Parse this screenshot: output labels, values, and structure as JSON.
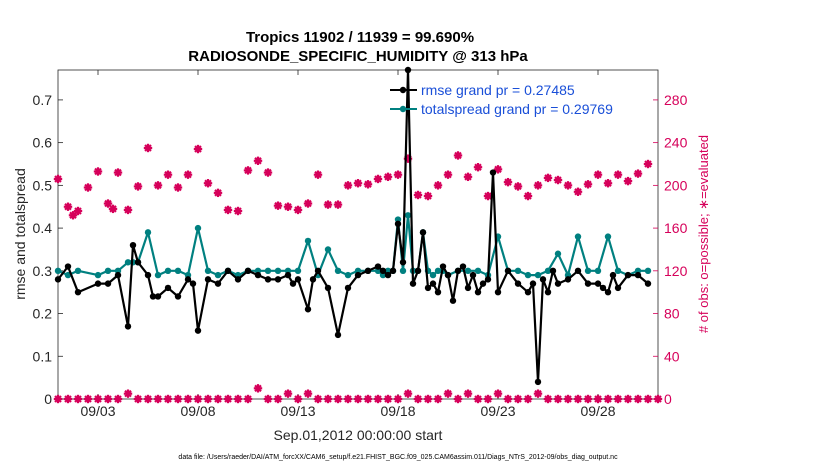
{
  "chart_data": {
    "type": "line",
    "title_line1": "Tropics 11902 / 11939 = 99.690%",
    "title_line2": "RADIOSONDE_SPECIFIC_HUMIDITY @ 313 hPa",
    "xlabel": "Sep.01,2012 00:00:00 start",
    "ylabel_left": "rmse and totalspread",
    "ylabel_right": "# of obs: o=possible; ∗=evaluated",
    "xlim": [
      1.0,
      31.0
    ],
    "ylim_left": [
      0,
      0.77
    ],
    "ylim_right": [
      0,
      308
    ],
    "x_ticks": [
      3,
      8,
      13,
      18,
      23,
      28
    ],
    "x_tick_labels": [
      "09/03",
      "09/08",
      "09/13",
      "09/18",
      "09/23",
      "09/28"
    ],
    "y_ticks_left": [
      0,
      0.1,
      0.2,
      0.3,
      0.4,
      0.5,
      0.6,
      0.7
    ],
    "y_tick_labels_left": [
      "0",
      "0.1",
      "0.2",
      "0.3",
      "0.4",
      "0.5",
      "0.6",
      "0.7"
    ],
    "y_ticks_right": [
      0,
      40,
      80,
      120,
      160,
      200,
      240,
      280
    ],
    "y_tick_labels_right": [
      "0",
      "40",
      "80",
      "120",
      "160",
      "200",
      "240",
      "280"
    ],
    "colors": {
      "rmse": "#000000",
      "spread": "#008080",
      "obs": "#d6005a",
      "legend_text": "#1a4fd8"
    },
    "legend": {
      "rmse": "rmse grand pr = 0.27485",
      "spread": "totalspread grand pr = 0.29769"
    },
    "series": [
      {
        "name": "rmse",
        "x": [
          1.0,
          1.5,
          2.0,
          3.0,
          3.5,
          4.0,
          4.5,
          4.75,
          5.0,
          5.5,
          5.75,
          6.0,
          6.5,
          7.0,
          7.5,
          7.75,
          8.0,
          8.5,
          9.0,
          9.5,
          10.0,
          10.5,
          11.0,
          11.5,
          12.0,
          12.5,
          12.75,
          13.0,
          13.5,
          13.75,
          14.0,
          14.5,
          15.0,
          15.5,
          16.0,
          16.5,
          17.0,
          17.25,
          17.5,
          17.75,
          18.0,
          18.25,
          18.5,
          18.75,
          19.0,
          19.25,
          19.5,
          19.75,
          20.0,
          20.25,
          20.5,
          20.75,
          21.0,
          21.25,
          21.5,
          21.75,
          22.0,
          22.25,
          22.5,
          22.75,
          23.0,
          23.5,
          24.0,
          24.5,
          24.75,
          25.0,
          25.25,
          25.5,
          25.75,
          26.0,
          26.5,
          27.0,
          27.5,
          28.0,
          28.25,
          28.5,
          28.75,
          29.0,
          29.5,
          30.0,
          30.5
        ],
        "values": [
          0.28,
          0.31,
          0.25,
          0.27,
          0.27,
          0.29,
          0.17,
          0.36,
          0.32,
          0.29,
          0.24,
          0.24,
          0.26,
          0.24,
          0.28,
          0.27,
          0.16,
          0.28,
          0.27,
          0.3,
          0.28,
          0.3,
          0.29,
          0.28,
          0.28,
          0.29,
          0.27,
          0.28,
          0.21,
          0.28,
          0.3,
          0.26,
          0.15,
          0.26,
          0.29,
          0.3,
          0.31,
          0.3,
          0.29,
          0.3,
          0.41,
          0.32,
          0.77,
          0.27,
          0.3,
          0.39,
          0.26,
          0.27,
          0.25,
          0.31,
          0.29,
          0.23,
          0.3,
          0.31,
          0.26,
          0.29,
          0.25,
          0.27,
          0.28,
          0.53,
          0.25,
          0.3,
          0.27,
          0.25,
          0.27,
          0.04,
          0.28,
          0.25,
          0.3,
          0.27,
          0.28,
          0.3,
          0.27,
          0.27,
          0.26,
          0.25,
          0.29,
          0.26,
          0.29,
          0.29,
          0.27
        ]
      },
      {
        "name": "totalspread",
        "x": [
          1.0,
          1.5,
          2.0,
          3.0,
          3.5,
          4.0,
          4.5,
          4.75,
          5.0,
          5.5,
          6.0,
          6.5,
          7.0,
          7.5,
          8.0,
          8.5,
          9.0,
          9.5,
          10.0,
          10.5,
          11.0,
          11.5,
          12.0,
          12.5,
          13.0,
          13.5,
          14.0,
          14.5,
          15.0,
          15.5,
          16.0,
          16.5,
          17.0,
          17.25,
          17.5,
          17.75,
          18.0,
          18.25,
          18.5,
          18.75,
          19.0,
          19.25,
          19.5,
          19.75,
          20.0,
          20.25,
          20.5,
          21.0,
          21.5,
          22.0,
          22.5,
          23.0,
          23.5,
          24.0,
          24.5,
          25.0,
          25.5,
          26.0,
          26.5,
          27.0,
          27.5,
          28.0,
          28.5,
          29.0,
          29.5,
          30.0,
          30.5
        ],
        "values": [
          0.3,
          0.29,
          0.3,
          0.29,
          0.3,
          0.3,
          0.32,
          0.32,
          0.32,
          0.39,
          0.29,
          0.3,
          0.3,
          0.29,
          0.4,
          0.3,
          0.29,
          0.3,
          0.29,
          0.3,
          0.3,
          0.3,
          0.3,
          0.3,
          0.3,
          0.37,
          0.29,
          0.35,
          0.3,
          0.29,
          0.3,
          0.3,
          0.3,
          0.29,
          0.3,
          0.3,
          0.42,
          0.3,
          0.43,
          0.3,
          0.3,
          0.39,
          0.3,
          0.29,
          0.3,
          0.3,
          0.29,
          0.3,
          0.3,
          0.3,
          0.29,
          0.38,
          0.3,
          0.3,
          0.29,
          0.29,
          0.3,
          0.34,
          0.29,
          0.38,
          0.3,
          0.3,
          0.38,
          0.3,
          0.29,
          0.3,
          0.3
        ]
      },
      {
        "name": "obs_evaluated",
        "x": [
          1.0,
          1.5,
          1.75,
          2.0,
          2.5,
          3.0,
          3.5,
          3.75,
          4.0,
          4.5,
          5.0,
          5.5,
          6.0,
          6.5,
          7.0,
          7.5,
          8.0,
          8.5,
          9.0,
          9.5,
          10.0,
          10.5,
          11.0,
          11.5,
          12.0,
          12.5,
          13.0,
          13.5,
          14.0,
          14.5,
          15.0,
          15.5,
          16.0,
          16.5,
          17.0,
          17.5,
          18.0,
          18.5,
          19.0,
          19.5,
          20.0,
          20.5,
          21.0,
          21.5,
          22.0,
          22.5,
          23.0,
          23.5,
          24.0,
          24.5,
          25.0,
          25.5,
          26.0,
          26.5,
          27.0,
          27.5,
          28.0,
          28.5,
          29.0,
          29.5,
          30.0,
          30.5
        ],
        "values": [
          206,
          180,
          172,
          176,
          198,
          213,
          183,
          178,
          212,
          177,
          199,
          235,
          200,
          210,
          198,
          210,
          234,
          202,
          193,
          177,
          176,
          214,
          223,
          212,
          181,
          180,
          177,
          183,
          210,
          182,
          182,
          200,
          202,
          201,
          206,
          208,
          210,
          225,
          191,
          190,
          200,
          210,
          228,
          208,
          217,
          190,
          215,
          203,
          199,
          190,
          200,
          207,
          205,
          200,
          194,
          201,
          210,
          202,
          210,
          204,
          211,
          220
        ]
      },
      {
        "name": "obs_possible_bottom",
        "x": [
          1.0,
          1.5,
          2.0,
          2.5,
          3.0,
          3.5,
          4.0,
          4.5,
          5.0,
          5.5,
          6.0,
          6.5,
          7.0,
          7.5,
          8.0,
          8.5,
          9.0,
          9.5,
          10.0,
          10.5,
          11.0,
          11.5,
          12.0,
          12.5,
          13.0,
          13.5,
          14.0,
          14.5,
          15.0,
          15.5,
          16.0,
          16.5,
          17.0,
          17.5,
          18.0,
          18.5,
          19.0,
          19.5,
          20.0,
          20.5,
          21.0,
          21.5,
          22.0,
          22.5,
          23.0,
          23.5,
          24.0,
          24.5,
          25.0,
          25.5,
          26.0,
          26.5,
          27.0,
          27.5,
          28.0,
          28.5,
          29.0,
          29.5,
          30.0,
          30.5,
          31.0
        ],
        "values": [
          0,
          0,
          0,
          0,
          0,
          0,
          0,
          5,
          0,
          0,
          0,
          0,
          0,
          0,
          0,
          0,
          0,
          0,
          0,
          0,
          10,
          0,
          0,
          5,
          0,
          5,
          0,
          0,
          0,
          0,
          0,
          0,
          0,
          0,
          0,
          5,
          0,
          0,
          0,
          5,
          0,
          5,
          0,
          0,
          5,
          0,
          0,
          0,
          5,
          0,
          0,
          0,
          0,
          0,
          0,
          0,
          0,
          0,
          0,
          0,
          0
        ]
      }
    ]
  },
  "footer": "data file: /Users/raeder/DAI/ATM_forcXX/CAM6_setup/f.e21.FHIST_BGC.f09_025.CAM6assim.011/Diags_NTrS_2012-09/obs_diag_output.nc"
}
